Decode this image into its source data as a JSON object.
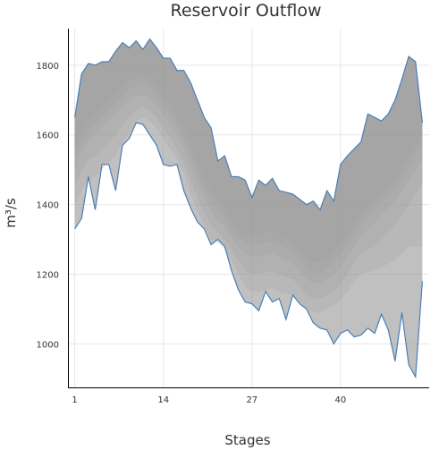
{
  "chart_data": {
    "type": "area",
    "title": "Reservoir Outflow",
    "xlabel": "Stages",
    "ylabel": "m³/s",
    "xlim": [
      0,
      53
    ],
    "ylim": [
      875,
      1905
    ],
    "xticks": [
      1,
      14,
      27,
      40
    ],
    "yticks": [
      1000,
      1200,
      1400,
      1600,
      1800
    ],
    "grid": true,
    "legend": "none",
    "colors": {
      "band_fill": "#999999",
      "envelope_line": "#4a7fb5",
      "axis": "#000000",
      "grid": "#e6e6e6",
      "text": "#333333"
    },
    "x": [
      1,
      2,
      3,
      4,
      5,
      6,
      7,
      8,
      9,
      10,
      11,
      12,
      13,
      14,
      15,
      16,
      17,
      18,
      19,
      20,
      21,
      22,
      23,
      24,
      25,
      26,
      27,
      28,
      29,
      30,
      31,
      32,
      33,
      34,
      35,
      36,
      37,
      38,
      39,
      40,
      41,
      42,
      43,
      44,
      45,
      46,
      47,
      48,
      49,
      50,
      51,
      52
    ],
    "bands": [
      {
        "lower": [
          1330,
          1360,
          1480,
          1385,
          1515,
          1515,
          1440,
          1570,
          1590,
          1635,
          1630,
          1600,
          1570,
          1515,
          1510,
          1515,
          1440,
          1390,
          1350,
          1330,
          1285,
          1300,
          1280,
          1210,
          1155,
          1120,
          1115,
          1095,
          1150,
          1120,
          1130,
          1070,
          1140,
          1115,
          1100,
          1060,
          1045,
          1040,
          1000,
          1030,
          1040,
          1020,
          1025,
          1045,
          1030,
          1085,
          1040,
          950,
          1090,
          940,
          905,
          1180
        ],
        "upper": [
          1650,
          1775,
          1805,
          1800,
          1810,
          1810,
          1840,
          1865,
          1850,
          1870,
          1845,
          1875,
          1850,
          1820,
          1820,
          1785,
          1785,
          1750,
          1700,
          1650,
          1620,
          1525,
          1540,
          1480,
          1480,
          1470,
          1420,
          1470,
          1455,
          1475,
          1440,
          1435,
          1430,
          1415,
          1400,
          1410,
          1385,
          1440,
          1410,
          1515,
          1540,
          1560,
          1580,
          1660,
          1650,
          1640,
          1660,
          1700,
          1760,
          1825,
          1810,
          1635
        ]
      },
      {
        "lower": [
          1400,
          1440,
          1470,
          1480,
          1500,
          1520,
          1540,
          1580,
          1610,
          1640,
          1650,
          1640,
          1620,
          1590,
          1560,
          1530,
          1490,
          1430,
          1380,
          1340,
          1300,
          1290,
          1270,
          1240,
          1200,
          1165,
          1150,
          1150,
          1155,
          1160,
          1150,
          1145,
          1140,
          1120,
          1100,
          1090,
          1090,
          1100,
          1110,
          1125,
          1150,
          1180,
          1200,
          1205,
          1210,
          1220,
          1230,
          1240,
          1260,
          1280,
          1280,
          1280
        ]
      },
      {
        "lower": [
          1450,
          1500,
          1530,
          1540,
          1560,
          1580,
          1600,
          1630,
          1650,
          1670,
          1680,
          1670,
          1650,
          1620,
          1590,
          1560,
          1520,
          1470,
          1420,
          1380,
          1340,
          1320,
          1300,
          1270,
          1240,
          1210,
          1200,
          1200,
          1205,
          1210,
          1200,
          1190,
          1185,
          1165,
          1140,
          1130,
          1130,
          1140,
          1150,
          1170,
          1200,
          1230,
          1260,
          1270,
          1280,
          1300,
          1320,
          1340,
          1370,
          1400,
          1430,
          1460
        ]
      },
      {
        "lower": [
          1500,
          1550,
          1580,
          1600,
          1620,
          1640,
          1660,
          1680,
          1700,
          1710,
          1715,
          1705,
          1685,
          1660,
          1630,
          1600,
          1560,
          1510,
          1460,
          1420,
          1380,
          1355,
          1335,
          1305,
          1280,
          1260,
          1250,
          1250,
          1255,
          1260,
          1250,
          1240,
          1230,
          1210,
          1185,
          1175,
          1175,
          1185,
          1200,
          1220,
          1250,
          1280,
          1310,
          1330,
          1350,
          1370,
          1390,
          1410,
          1440,
          1470,
          1500,
          1530
        ]
      },
      {
        "lower": [
          1530,
          1580,
          1610,
          1630,
          1650,
          1670,
          1690,
          1710,
          1730,
          1740,
          1745,
          1735,
          1715,
          1690,
          1660,
          1630,
          1590,
          1540,
          1490,
          1450,
          1410,
          1380,
          1360,
          1330,
          1305,
          1290,
          1285,
          1285,
          1290,
          1295,
          1285,
          1275,
          1260,
          1240,
          1215,
          1205,
          1205,
          1215,
          1235,
          1255,
          1285,
          1315,
          1345,
          1365,
          1385,
          1405,
          1425,
          1445,
          1475,
          1505,
          1540,
          1570
        ]
      },
      {
        "lower": [
          1560,
          1610,
          1640,
          1660,
          1680,
          1700,
          1720,
          1740,
          1755,
          1765,
          1770,
          1760,
          1740,
          1715,
          1685,
          1655,
          1620,
          1570,
          1520,
          1480,
          1440,
          1410,
          1390,
          1360,
          1330,
          1315,
          1310,
          1315,
          1320,
          1325,
          1315,
          1305,
          1290,
          1270,
          1245,
          1235,
          1235,
          1245,
          1265,
          1290,
          1315,
          1345,
          1375,
          1395,
          1415,
          1435,
          1455,
          1475,
          1505,
          1535,
          1570,
          1600
        ]
      }
    ]
  }
}
